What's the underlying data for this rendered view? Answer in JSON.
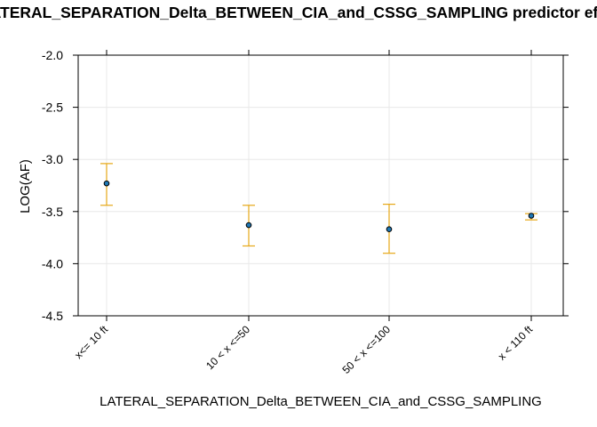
{
  "chart_data": {
    "type": "errorbar",
    "title": "LATERAL_SEPARATION_Delta_BETWEEN_CIA_and_CSSG_SAMPLING predictor effect plot",
    "xlabel": "LATERAL_SEPARATION_Delta_BETWEEN_CIA_and_CSSG_SAMPLING",
    "ylabel": "LOG(AF)",
    "ylim": [
      -4.5,
      -2.0
    ],
    "yticks": [
      -2.0,
      -2.5,
      -3.0,
      -3.5,
      -4.0,
      -4.5
    ],
    "ytick_labels": [
      "-2.0",
      "-2.5",
      "-3.0",
      "-3.5",
      "-4.0",
      "-4.5"
    ],
    "categories": [
      "x<= 10 ft",
      "10 < x <=50",
      "50 < x <=100",
      "x < 110 ft"
    ],
    "values": [
      -3.23,
      -3.63,
      -3.67,
      -3.54
    ],
    "lower": [
      -3.44,
      -3.83,
      -3.9,
      -3.58
    ],
    "upper": [
      -3.04,
      -3.44,
      -3.43,
      -3.52
    ],
    "grid": true,
    "colors": {
      "point": "#1f78b4",
      "errorbar": "#e6a817",
      "grid": "#e8e8e8",
      "axis": "#000000"
    }
  }
}
